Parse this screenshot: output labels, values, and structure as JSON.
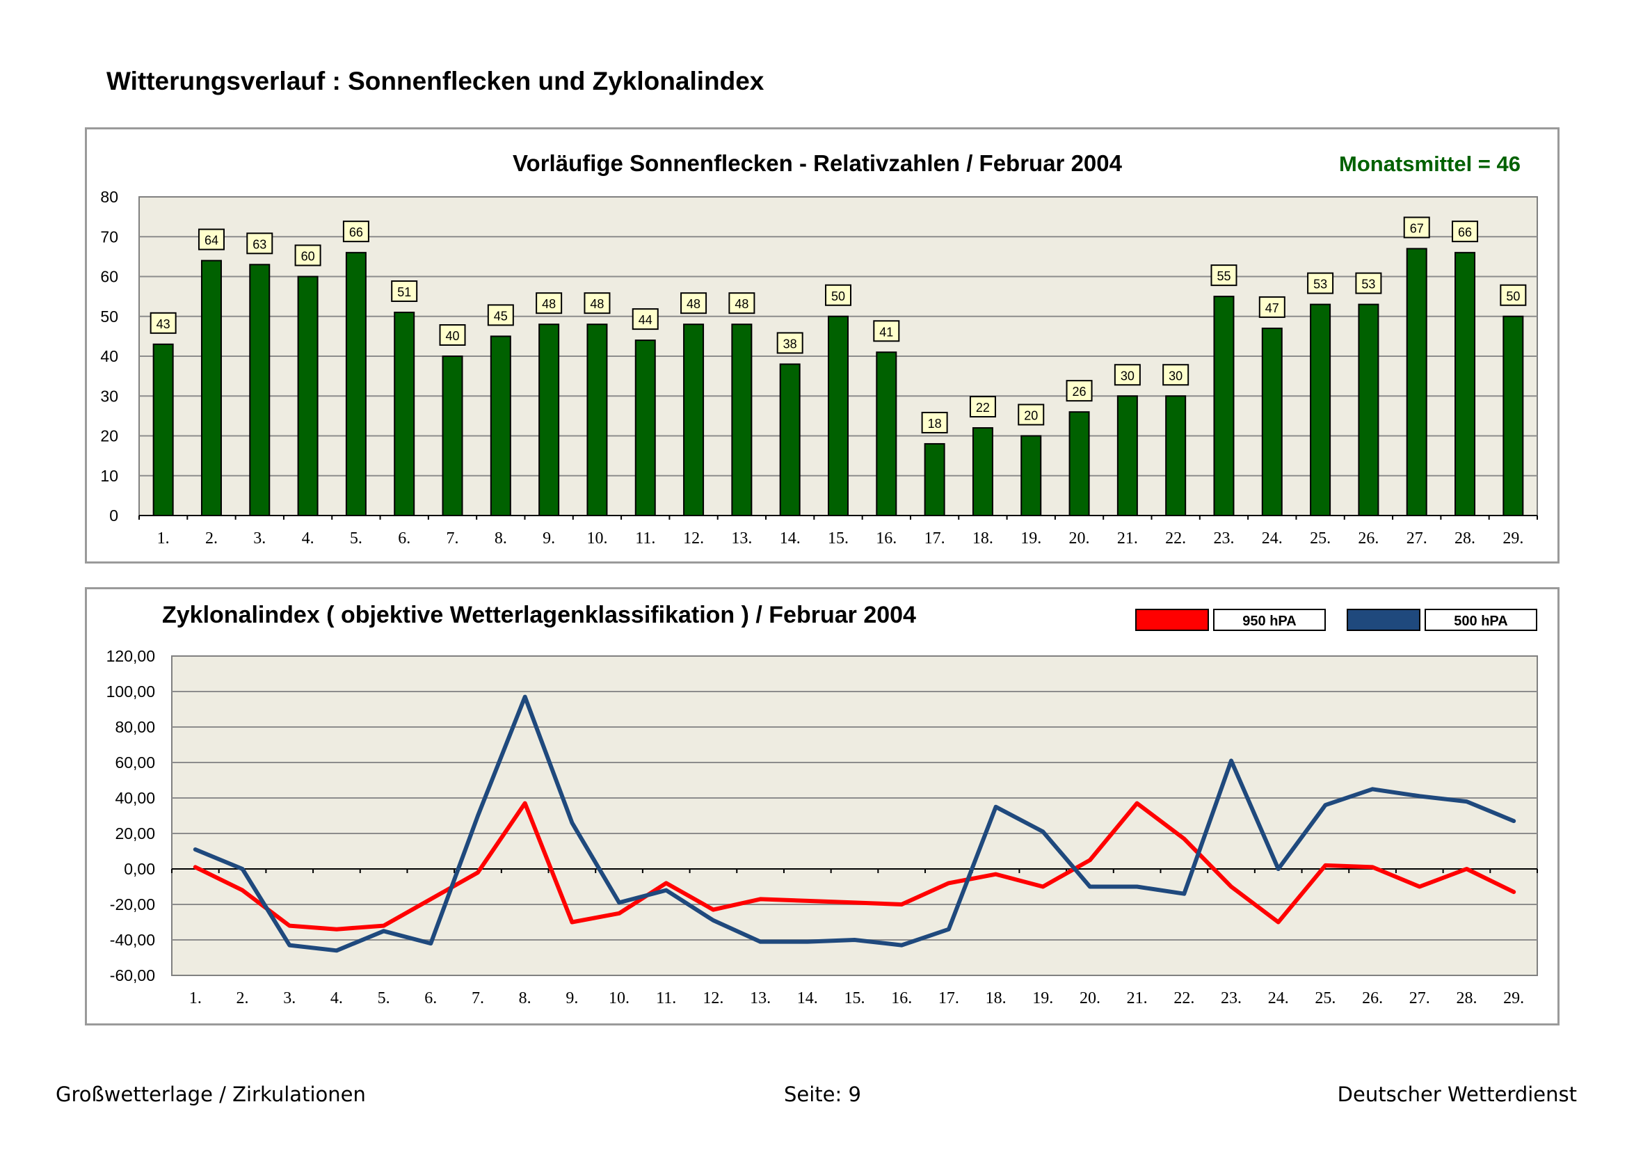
{
  "page_title": "Witterungsverlauf : Sonnenflecken und Zyklonalindex",
  "footer": {
    "left": "Großwetterlage / Zirkulationen",
    "center": "Seite: 9",
    "right": "Deutscher Wetterdienst"
  },
  "colors": {
    "plot_bg": "#eeece1",
    "bar_fill": "#006100",
    "monthly_mean_text": "#006100",
    "line_950": "#ff0000",
    "line_500": "#1f497d",
    "label_box_bg": "#ffffcc"
  },
  "chart_data": [
    {
      "type": "bar",
      "title": "Vorläufige Sonnenflecken - Relativzahlen   /   Februar 2004",
      "annotation": "Monatsmittel = 46",
      "categories": [
        "1.",
        "2.",
        "3.",
        "4.",
        "5.",
        "6.",
        "7.",
        "8.",
        "9.",
        "10.",
        "11.",
        "12.",
        "13.",
        "14.",
        "15.",
        "16.",
        "17.",
        "18.",
        "19.",
        "20.",
        "21.",
        "22.",
        "23.",
        "24.",
        "25.",
        "26.",
        "27.",
        "28.",
        "29."
      ],
      "values": [
        43,
        64,
        63,
        60,
        66,
        51,
        40,
        45,
        48,
        48,
        44,
        48,
        48,
        38,
        50,
        41,
        18,
        22,
        20,
        26,
        30,
        30,
        55,
        47,
        53,
        53,
        67,
        66,
        50
      ],
      "data_labels": [
        "43",
        "64",
        "63",
        "60",
        "66",
        "51",
        "40",
        "45",
        "48",
        "48",
        "44",
        "48",
        "48",
        "38",
        "50",
        "41",
        "18",
        "22",
        "20",
        "26",
        "30",
        "30",
        "55",
        "47",
        "53",
        "53",
        "67",
        "66",
        "50"
      ],
      "y_ticks": [
        "0",
        "10",
        "20",
        "30",
        "40",
        "50",
        "60",
        "70",
        "80"
      ],
      "ylim": [
        0,
        80
      ],
      "grid": true
    },
    {
      "type": "line",
      "title": "Zyklonalindex  ( objektive Wetterlagenklassifikation )  /  Februar 2004",
      "categories": [
        "1.",
        "2.",
        "3.",
        "4.",
        "5.",
        "6.",
        "7.",
        "8.",
        "9.",
        "10.",
        "11.",
        "12.",
        "13.",
        "14.",
        "15.",
        "16.",
        "17.",
        "18.",
        "19.",
        "20.",
        "21.",
        "22.",
        "23.",
        "24.",
        "25.",
        "26.",
        "27.",
        "28.",
        "29."
      ],
      "series": [
        {
          "name": "950 hPA",
          "color": "#ff0000",
          "values": [
            1,
            -12,
            -32,
            -34,
            -32,
            -17,
            -2,
            37,
            -30,
            -25,
            -8,
            -23,
            -17,
            -18,
            -19,
            -20,
            -8,
            -3,
            -10,
            5,
            37,
            17,
            -10,
            -30,
            2,
            1,
            -10,
            0,
            -13
          ]
        },
        {
          "name": "500 hPA",
          "color": "#1f497d",
          "values": [
            11,
            0,
            -43,
            -46,
            -35,
            -42,
            30,
            97,
            26,
            -19,
            -12,
            -29,
            -41,
            -41,
            -40,
            -43,
            -34,
            35,
            21,
            -10,
            -10,
            -14,
            61,
            0,
            36,
            45,
            41,
            38,
            27
          ]
        }
      ],
      "y_ticks": [
        "-60,00",
        "-40,00",
        "-20,00",
        "0,00",
        "20,00",
        "40,00",
        "60,00",
        "80,00",
        "100,00",
        "120,00"
      ],
      "ylim": [
        -60,
        120
      ],
      "legend_position": "top-right",
      "grid": true
    }
  ]
}
